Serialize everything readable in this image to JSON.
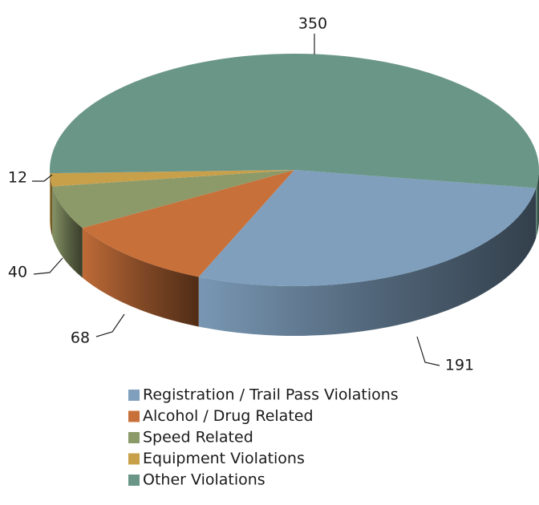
{
  "chart_data": {
    "type": "pie",
    "categories": [
      "Registration / Trail Pass Violations",
      "Alcohol / Drug Related",
      "Speed Related",
      "Equipment Violations",
      "Other Violations"
    ],
    "values": [
      191,
      68,
      40,
      12,
      350
    ],
    "colors": [
      "#7f9fbd",
      "#c8703a",
      "#8c9a6a",
      "#c9a04a",
      "#6a9688"
    ],
    "legend": "bottom"
  }
}
